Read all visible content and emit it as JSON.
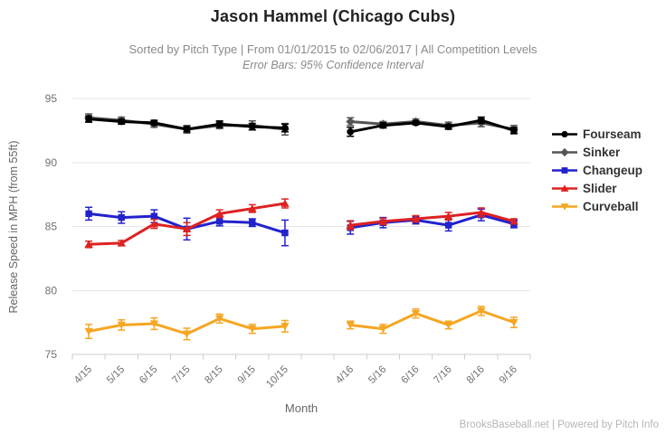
{
  "header": {
    "title": "Jason Hammel (Chicago Cubs)",
    "subtitle": "Sorted by Pitch Type | From 01/01/2015 to 02/06/2017 | All Competition Levels",
    "error_bars_note": "Error Bars: 95% Confidence Interval"
  },
  "footer": {
    "credit": "BrooksBaseball.net | Powered by Pitch Info"
  },
  "colors": {
    "grid": "#e6e6e6",
    "axis": "#c8ccd2",
    "tick_label": "#707070",
    "axis_title": "#666666",
    "legend_text": "#333333",
    "title": "#222222",
    "subtitle": "#8a8a8a",
    "footer": "#b5b5b5"
  },
  "chart_data": {
    "type": "line",
    "title": "Jason Hammel (Chicago Cubs)",
    "xlabel": "Month",
    "ylabel": "Release Speed in MPH (from 55ft)",
    "ylim": [
      75,
      95
    ],
    "yticks": [
      75,
      80,
      85,
      90,
      95
    ],
    "grid": true,
    "legend_position": "right",
    "error_bars": "95% Confidence Interval",
    "x_categories": [
      "4/15",
      "5/15",
      "6/15",
      "7/15",
      "8/15",
      "9/15",
      "10/15",
      "",
      "4/16",
      "5/16",
      "6/16",
      "7/16",
      "8/16",
      "9/16"
    ],
    "series": [
      {
        "name": "Fourseam",
        "color": "#000000",
        "marker": "circle",
        "values": [
          93.4,
          93.2,
          93.1,
          92.6,
          93.0,
          92.8,
          92.7,
          null,
          92.4,
          92.9,
          93.1,
          92.8,
          93.3,
          92.5
        ],
        "errors": [
          0.25,
          0.2,
          0.2,
          0.2,
          0.25,
          0.25,
          0.3,
          null,
          0.35,
          0.2,
          0.15,
          0.2,
          0.25,
          0.25
        ]
      },
      {
        "name": "Sinker",
        "color": "#545454",
        "marker": "diamond",
        "values": [
          93.5,
          93.3,
          93.0,
          92.6,
          92.9,
          92.9,
          92.6,
          null,
          93.2,
          93.0,
          93.2,
          92.9,
          93.1,
          92.6
        ],
        "errors": [
          0.3,
          0.25,
          0.25,
          0.3,
          0.25,
          0.35,
          0.45,
          null,
          0.3,
          0.2,
          0.2,
          0.25,
          0.3,
          0.3
        ]
      },
      {
        "name": "Changeup",
        "color": "#2222cc",
        "marker": "square",
        "values": [
          86.0,
          85.7,
          85.8,
          84.8,
          85.4,
          85.3,
          84.5,
          null,
          84.9,
          85.3,
          85.5,
          85.1,
          85.9,
          85.2
        ],
        "errors": [
          0.5,
          0.45,
          0.5,
          0.85,
          0.35,
          0.3,
          1.0,
          null,
          0.5,
          0.4,
          0.3,
          0.45,
          0.45,
          0.3
        ]
      },
      {
        "name": "Slider",
        "color": "#dd2222",
        "marker": "triangle-up",
        "values": [
          83.6,
          83.7,
          85.2,
          84.8,
          86.0,
          86.4,
          86.8,
          null,
          85.1,
          85.4,
          85.6,
          85.8,
          86.1,
          85.4
        ],
        "errors": [
          0.25,
          0.2,
          0.35,
          0.5,
          0.3,
          0.3,
          0.35,
          null,
          0.35,
          0.25,
          0.25,
          0.3,
          0.35,
          0.2
        ]
      },
      {
        "name": "Curveball",
        "color": "#f5a623",
        "marker": "triangle-down",
        "values": [
          76.8,
          77.3,
          77.4,
          76.6,
          77.8,
          77.0,
          77.2,
          null,
          77.3,
          77.0,
          78.2,
          77.3,
          78.4,
          77.5
        ],
        "errors": [
          0.55,
          0.4,
          0.45,
          0.45,
          0.35,
          0.35,
          0.45,
          null,
          0.3,
          0.35,
          0.35,
          0.3,
          0.35,
          0.4
        ]
      }
    ]
  }
}
